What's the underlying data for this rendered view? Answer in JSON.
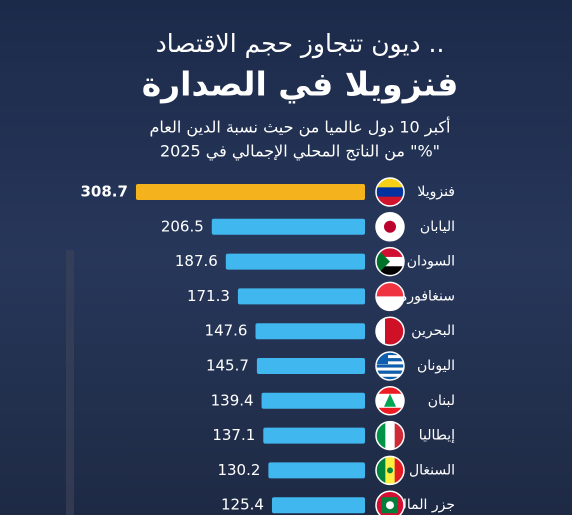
{
  "chart_data": {
    "type": "bar",
    "orientation": "horizontal",
    "title": "ديون تتجاوز حجم الاقتصاد ..",
    "headline": "فنزويلا في الصدارة",
    "subtitle": [
      "أكبر 10 دول عالميا من حيث نسبة الدين العام",
      "من الناتج المحلي الإجمالي في 2025 \"%\""
    ],
    "categories": [
      "فنزويلا",
      "اليابان",
      "السودان",
      "سنغافورة",
      "البحرين",
      "اليونان",
      "لبنان",
      "إيطاليا",
      "السنغال",
      "جزر المالديف"
    ],
    "values": [
      308.7,
      206.5,
      187.6,
      171.3,
      147.6,
      145.7,
      139.4,
      137.1,
      130.2,
      125.4
    ],
    "colors": [
      "#f4b21d",
      "#41b7ef",
      "#41b7ef",
      "#41b7ef",
      "#41b7ef",
      "#41b7ef",
      "#41b7ef",
      "#41b7ef",
      "#41b7ef",
      "#41b7ef"
    ],
    "xlim": [
      0,
      310
    ]
  }
}
